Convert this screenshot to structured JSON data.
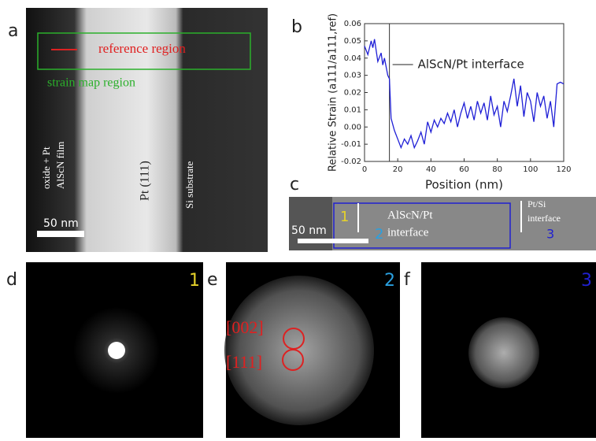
{
  "panels": {
    "a": "a",
    "b": "b",
    "c": "c",
    "d": "d",
    "e": "e",
    "f": "f"
  },
  "image_a": {
    "reference": "reference region",
    "strain_map": "strain map region",
    "film_top": "oxide + Pt",
    "film_bottom": "AlScN film",
    "pt": "Pt (111)",
    "si": "Si substrate",
    "scale": "50 nm"
  },
  "image_c": {
    "marker1": "1",
    "marker2": "2",
    "marker3": "3",
    "interface1_line1": "AlScN/Pt",
    "interface1_line2": "interface",
    "interface2_line1": "Pt/Si",
    "interface2_line2": "interface",
    "scale": "50 nm"
  },
  "image_d": {
    "number": "1"
  },
  "image_e": {
    "number": "2",
    "label1": "[002]",
    "label2": "[111]"
  },
  "image_f": {
    "number": "3"
  },
  "chart_data": {
    "type": "line",
    "xlabel": "Position (nm)",
    "ylabel": "Relative Strain (a111/a111,ref)",
    "annotation": "AlScN/Pt interface",
    "annotation_x": 15,
    "x": [
      0,
      2,
      4,
      5,
      6,
      8,
      10,
      11,
      12,
      14,
      15,
      16,
      18,
      20,
      22,
      24,
      26,
      28,
      30,
      32,
      34,
      36,
      38,
      40,
      42,
      44,
      46,
      48,
      50,
      52,
      54,
      56,
      58,
      60,
      62,
      64,
      66,
      68,
      70,
      72,
      74,
      76,
      78,
      80,
      82,
      84,
      86,
      88,
      90,
      92,
      94,
      96,
      98,
      100,
      102,
      104,
      106,
      108,
      110,
      112,
      114,
      116,
      118,
      120
    ],
    "series": [
      {
        "color": "#1f1fd6",
        "values": [
          0.047,
          0.042,
          0.05,
          0.046,
          0.051,
          0.038,
          0.043,
          0.036,
          0.04,
          0.03,
          0.028,
          0.005,
          -0.002,
          -0.007,
          -0.012,
          -0.007,
          -0.01,
          -0.005,
          -0.012,
          -0.008,
          -0.003,
          -0.01,
          0.003,
          -0.003,
          0.004,
          0.0,
          0.005,
          0.002,
          0.008,
          0.003,
          0.01,
          0.0,
          0.008,
          0.014,
          0.005,
          0.012,
          0.004,
          0.015,
          0.008,
          0.014,
          0.004,
          0.018,
          0.007,
          0.012,
          0.0,
          0.015,
          0.009,
          0.018,
          0.028,
          0.012,
          0.024,
          0.006,
          0.02,
          0.015,
          0.003,
          0.02,
          0.012,
          0.018,
          0.005,
          0.015,
          0.0,
          0.025,
          0.026,
          0.025
        ]
      }
    ],
    "xlim": [
      0,
      120
    ],
    "xticks": [
      0,
      20,
      40,
      60,
      80,
      100,
      120
    ],
    "ylim": [
      -0.02,
      0.06
    ],
    "yticks": [
      -0.02,
      -0.01,
      {
        "value": 0,
        "label": "0.00"
      },
      0.01,
      0.02,
      0.03,
      0.04,
      0.05,
      0.06
    ]
  }
}
